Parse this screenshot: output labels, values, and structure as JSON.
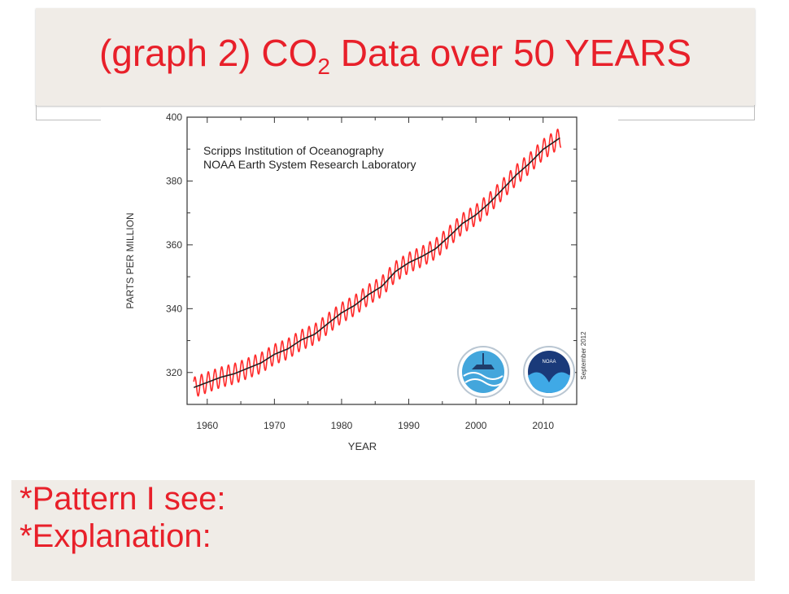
{
  "slide": {
    "title_main": "(graph 2) CO",
    "title_sub": "2",
    "title_rest": " Data over 50 YEARS",
    "notes": [
      "*Pattern I see:",
      "*Explanation:"
    ]
  },
  "colors": {
    "accent": "#e8202a",
    "monthly": "#ff2a2a",
    "trend": "#222222",
    "panel": "#f0ece7"
  },
  "chart_data": {
    "type": "line",
    "xlabel": "YEAR",
    "ylabel": "PARTS PER MILLION",
    "xlim": [
      1957,
      2015
    ],
    "ylim": [
      310,
      400
    ],
    "xticks": [
      1960,
      1970,
      1980,
      1990,
      2000,
      2010
    ],
    "yticks": [
      320,
      340,
      360,
      380,
      400
    ],
    "annotations": [
      "Scripps Institution of Oceanography",
      "NOAA Earth System Research Laboratory"
    ],
    "side_note": "September 2012",
    "logos": [
      "scripps-logo",
      "noaa-logo"
    ],
    "logo_text": "NOAA",
    "seasonal_amplitude_ppm": 3.2,
    "series": [
      {
        "name": "monthly",
        "style": "red seasonal",
        "x": [
          1958,
          1960,
          1962,
          1964,
          1966,
          1968,
          1970,
          1972,
          1974,
          1976,
          1978,
          1980,
          1982,
          1984,
          1986,
          1988,
          1990,
          1992,
          1994,
          1996,
          1998,
          2000,
          2002,
          2004,
          2006,
          2008,
          2010,
          2012.7
        ],
        "y": [
          315.3,
          316.9,
          318.5,
          319.6,
          321.3,
          323.0,
          325.7,
          327.4,
          330.2,
          332.0,
          335.4,
          338.7,
          341.1,
          344.4,
          347.0,
          351.6,
          354.4,
          356.4,
          358.8,
          362.6,
          366.7,
          369.4,
          373.1,
          377.5,
          381.9,
          385.6,
          389.9,
          393.8
        ]
      },
      {
        "name": "trend",
        "style": "black trend",
        "x": [
          1958,
          1960,
          1962,
          1964,
          1966,
          1968,
          1970,
          1972,
          1974,
          1976,
          1978,
          1980,
          1982,
          1984,
          1986,
          1988,
          1990,
          1992,
          1994,
          1996,
          1998,
          2000,
          2002,
          2004,
          2006,
          2008,
          2010,
          2012.7
        ],
        "y": [
          315.3,
          316.9,
          318.5,
          319.6,
          321.3,
          323.0,
          325.7,
          327.4,
          330.2,
          332.0,
          335.4,
          338.7,
          341.1,
          344.4,
          347.0,
          351.6,
          354.4,
          356.4,
          358.8,
          362.6,
          366.7,
          369.4,
          373.1,
          377.5,
          381.9,
          385.6,
          389.9,
          393.8
        ]
      }
    ]
  }
}
